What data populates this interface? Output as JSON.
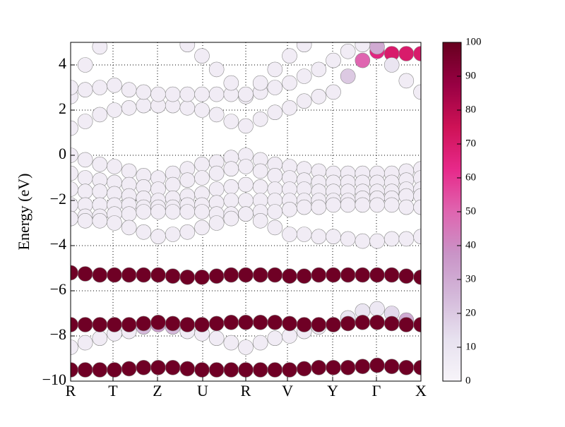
{
  "chart_data": {
    "type": "fatband",
    "ylabel": "Energy (eV)",
    "xlim": [
      0,
      1
    ],
    "ylim": [
      -10,
      5
    ],
    "xticks": [
      {
        "value": 0,
        "label": "R"
      },
      {
        "value": 0.121,
        "label": "T"
      },
      {
        "value": 0.248,
        "label": "Z"
      },
      {
        "value": 0.377,
        "label": "U"
      },
      {
        "value": 0.5,
        "label": "R"
      },
      {
        "value": 0.619,
        "label": "V"
      },
      {
        "value": 0.748,
        "label": "Y"
      },
      {
        "value": 0.873,
        "label": "Γ"
      },
      {
        "value": 1,
        "label": "X"
      }
    ],
    "yticks": [
      {
        "value": -10,
        "label": "−10"
      },
      {
        "value": -8,
        "label": "−8"
      },
      {
        "value": -6,
        "label": "−6"
      },
      {
        "value": -4,
        "label": "−4"
      },
      {
        "value": -2,
        "label": "−2"
      },
      0,
      2,
      4
    ],
    "grid": true,
    "clim": [
      0,
      100
    ],
    "cticks": [
      0,
      10,
      20,
      30,
      40,
      50,
      60,
      70,
      80,
      90,
      100
    ],
    "colormap": [
      "#f7f4f9",
      "#e7e1ef",
      "#d4b9da",
      "#c994c7",
      "#df65b0",
      "#e7298a",
      "#ce1256",
      "#980043",
      "#67001f"
    ],
    "x": [
      0,
      0.0417,
      0.0833,
      0.125,
      0.1667,
      0.2083,
      0.25,
      0.2917,
      0.3333,
      0.375,
      0.4167,
      0.4583,
      0.5,
      0.5417,
      0.5833,
      0.625,
      0.6667,
      0.7083,
      0.75,
      0.7917,
      0.8333,
      0.875,
      0.9167,
      0.9583,
      1
    ],
    "bands": [
      {
        "values": [
          0,
          -0.2,
          -0.4,
          -0.5,
          -0.7,
          -0.9,
          -1.0,
          -0.8,
          -0.6,
          -0.4,
          -0.3,
          -0.1,
          0,
          -0.2,
          -0.4,
          -0.5,
          -0.6,
          -0.7,
          -0.8,
          -0.8,
          -0.8,
          -0.8,
          -0.8,
          -0.7,
          -0.6
        ],
        "weights": [
          5,
          5,
          5,
          5,
          5,
          5,
          5,
          5,
          5,
          5,
          5,
          5,
          5,
          5,
          5,
          5,
          5,
          5,
          5,
          5,
          5,
          5,
          5,
          5,
          5
        ]
      },
      {
        "values": [
          -0.8,
          -1.0,
          -1.1,
          -1.2,
          -1.3,
          -1.4,
          -1.5,
          -1.3,
          -1.1,
          -1.0,
          -0.8,
          -0.6,
          -0.5,
          -0.7,
          -0.9,
          -1.0,
          -1.1,
          -1.2,
          -1.2,
          -1.2,
          -1.2,
          -1.2,
          -1.2,
          -1.1,
          -1.0
        ],
        "weights": [
          5,
          5,
          5,
          5,
          5,
          5,
          5,
          5,
          5,
          5,
          5,
          5,
          5,
          5,
          5,
          5,
          5,
          5,
          5,
          5,
          5,
          5,
          5,
          5,
          5
        ]
      },
      {
        "values": [
          -1.5,
          -1.6,
          -1.6,
          -1.7,
          -1.8,
          -1.9,
          -2.0,
          -1.9,
          -1.8,
          -1.7,
          -1.5,
          -1.4,
          -1.3,
          -1.4,
          -1.5,
          -1.5,
          -1.5,
          -1.6,
          -1.6,
          -1.6,
          -1.6,
          -1.6,
          -1.6,
          -1.5,
          -1.5
        ],
        "weights": [
          5,
          5,
          5,
          5,
          5,
          5,
          5,
          5,
          5,
          5,
          5,
          5,
          5,
          5,
          5,
          5,
          5,
          5,
          5,
          5,
          5,
          5,
          5,
          5,
          5
        ]
      },
      {
        "values": [
          -2.2,
          -2.2,
          -2.2,
          -2.2,
          -2.2,
          -2.3,
          -2.3,
          -2.3,
          -2.2,
          -2.2,
          -2.1,
          -2.0,
          -2.0,
          -2.0,
          -2.0,
          -2.0,
          -2.0,
          -2.0,
          -2.0,
          -2.0,
          -1.9,
          -1.9,
          -1.9,
          -1.8,
          -1.8
        ],
        "weights": [
          5,
          5,
          5,
          5,
          5,
          5,
          5,
          5,
          5,
          5,
          5,
          5,
          5,
          5,
          5,
          5,
          5,
          5,
          5,
          5,
          5,
          5,
          5,
          5,
          5
        ]
      },
      {
        "values": [
          -2.8,
          -2.7,
          -2.7,
          -2.6,
          -2.6,
          -2.5,
          -2.5,
          -2.5,
          -2.5,
          -2.5,
          -2.6,
          -2.6,
          -2.6,
          -2.5,
          -2.5,
          -2.4,
          -2.3,
          -2.3,
          -2.2,
          -2.2,
          -2.2,
          -2.2,
          -2.2,
          -2.3,
          -2.3
        ],
        "weights": [
          5,
          5,
          5,
          5,
          5,
          5,
          5,
          5,
          5,
          5,
          5,
          5,
          5,
          5,
          5,
          5,
          5,
          5,
          5,
          5,
          5,
          5,
          5,
          5,
          5
        ]
      },
      {
        "values": [
          -2.8,
          -2.9,
          -2.9,
          -3.0,
          -3.2,
          -3.4,
          -3.6,
          -3.5,
          -3.4,
          -3.2,
          -3.0,
          -2.8,
          -2.6,
          -2.9,
          -3.2,
          -3.5,
          -3.5,
          -3.6,
          -3.6,
          -3.7,
          -3.8,
          -3.8,
          -3.7,
          -3.7,
          -3.6
        ],
        "weights": [
          5,
          5,
          5,
          5,
          5,
          5,
          5,
          5,
          5,
          5,
          5,
          5,
          5,
          5,
          5,
          5,
          5,
          5,
          5,
          5,
          5,
          5,
          5,
          5,
          5
        ]
      },
      {
        "values": [
          1.2,
          1.5,
          1.8,
          2.0,
          2.1,
          2.2,
          2.2,
          2.2,
          2.1,
          2.0,
          1.8,
          1.5,
          1.3,
          1.6,
          1.9,
          2.1,
          2.4,
          2.6,
          2.8,
          3.5,
          4.2,
          4.6,
          4.5,
          4.5,
          4.5
        ],
        "weights": [
          5,
          5,
          5,
          5,
          5,
          5,
          5,
          5,
          5,
          5,
          5,
          5,
          5,
          5,
          5,
          5,
          5,
          5,
          5,
          20,
          50,
          65,
          70,
          70,
          70
        ]
      },
      {
        "values": [
          2.6,
          2.9,
          3.0,
          3.1,
          2.9,
          2.8,
          2.7,
          2.7,
          2.7,
          2.7,
          2.7,
          2.7,
          2.6,
          2.8,
          3.0,
          3.2,
          3.5,
          3.8,
          4.2,
          4.6,
          4.9,
          null,
          null,
          null,
          null
        ],
        "weights": [
          5,
          5,
          5,
          5,
          5,
          5,
          5,
          5,
          5,
          5,
          5,
          5,
          5,
          5,
          5,
          5,
          5,
          5,
          5,
          5,
          5,
          null,
          null,
          null,
          null
        ]
      },
      {
        "values": [
          null,
          null,
          null,
          null,
          null,
          null,
          null,
          null,
          null,
          null,
          null,
          null,
          null,
          null,
          null,
          null,
          null,
          null,
          null,
          null,
          null,
          4.8,
          4.0,
          3.3,
          2.8
        ],
        "weights": [
          null,
          null,
          null,
          null,
          null,
          null,
          null,
          null,
          null,
          null,
          null,
          null,
          null,
          null,
          null,
          null,
          null,
          null,
          null,
          null,
          null,
          30,
          10,
          5,
          5
        ]
      },
      {
        "values": [
          3.0,
          4.0,
          4.8,
          null,
          null,
          null,
          null,
          null,
          4.9,
          4.4,
          3.8,
          3.2,
          2.7,
          3.2,
          3.8,
          4.4,
          4.9,
          null,
          null,
          null,
          null,
          null,
          null,
          null,
          null
        ],
        "weights": [
          5,
          5,
          5,
          null,
          null,
          null,
          null,
          null,
          5,
          5,
          5,
          5,
          5,
          5,
          5,
          5,
          5,
          null,
          null,
          null,
          null,
          null,
          null,
          null,
          null
        ]
      },
      {
        "values": [
          -8.5,
          -8.3,
          -8.1,
          -7.9,
          -7.8,
          -7.6,
          -7.5,
          -7.6,
          -7.8,
          -7.9,
          -8.1,
          -8.3,
          -8.5,
          -8.3,
          -8.1,
          -8.0,
          -7.8,
          -7.6,
          -7.5,
          -7.2,
          -6.9,
          -6.8,
          -7.0,
          -7.3,
          -7.5
        ],
        "weights": [
          5,
          5,
          5,
          5,
          5,
          25,
          35,
          25,
          5,
          5,
          5,
          5,
          5,
          5,
          5,
          5,
          5,
          5,
          15,
          10,
          10,
          8,
          15,
          30,
          40
        ]
      },
      {
        "values": [
          -9.5,
          -9.5,
          -9.5,
          -9.5,
          -9.45,
          -9.4,
          -9.4,
          -9.4,
          -9.45,
          -9.5,
          -9.5,
          -9.5,
          -9.5,
          -9.5,
          -9.5,
          -9.5,
          -9.45,
          -9.4,
          -9.4,
          -9.4,
          -9.35,
          -9.3,
          -9.35,
          -9.4,
          -9.4
        ],
        "weights": [
          98,
          98,
          98,
          98,
          98,
          98,
          98,
          98,
          98,
          98,
          98,
          98,
          98,
          98,
          98,
          98,
          98,
          98,
          98,
          98,
          98,
          98,
          98,
          98,
          98
        ]
      },
      {
        "values": [
          -7.5,
          -7.5,
          -7.5,
          -7.5,
          -7.5,
          -7.45,
          -7.4,
          -7.45,
          -7.5,
          -7.5,
          -7.45,
          -7.4,
          -7.4,
          -7.4,
          -7.4,
          -7.45,
          -7.5,
          -7.5,
          -7.5,
          -7.45,
          -7.4,
          -7.4,
          -7.45,
          -7.5,
          -7.5
        ],
        "weights": [
          98,
          98,
          98,
          98,
          98,
          98,
          98,
          98,
          98,
          98,
          98,
          98,
          98,
          98,
          98,
          98,
          98,
          98,
          98,
          98,
          98,
          98,
          98,
          98,
          98
        ]
      },
      {
        "values": [
          -5.2,
          -5.25,
          -5.3,
          -5.3,
          -5.3,
          -5.3,
          -5.3,
          -5.35,
          -5.4,
          -5.4,
          -5.35,
          -5.3,
          -5.3,
          -5.3,
          -5.3,
          -5.35,
          -5.35,
          -5.3,
          -5.3,
          -5.3,
          -5.3,
          -5.3,
          -5.3,
          -5.35,
          -5.4
        ],
        "weights": [
          98,
          98,
          98,
          98,
          98,
          98,
          98,
          98,
          98,
          98,
          98,
          98,
          98,
          98,
          98,
          98,
          98,
          98,
          98,
          98,
          98,
          98,
          98,
          98,
          98
        ]
      }
    ]
  }
}
